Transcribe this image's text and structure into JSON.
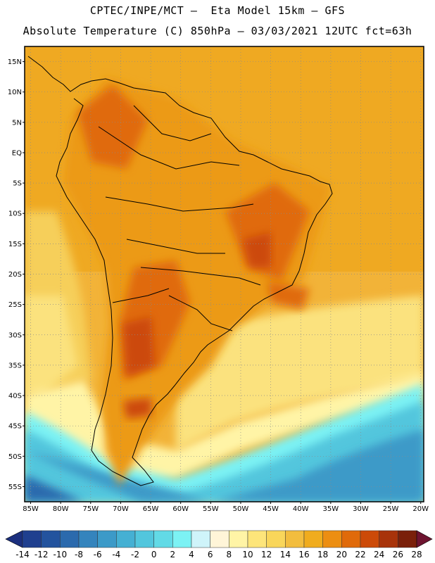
{
  "header": {
    "line1": "CPTEC/INPE/MCT –  Eta Model 15km – GFS",
    "line2": "Absolute Temperature (C) 850hPa – 03/03/2021 12UTC fct=63h"
  },
  "map": {
    "lat_labels": [
      "15N",
      "10N",
      "5N",
      "EQ",
      "5S",
      "10S",
      "15S",
      "20S",
      "25S",
      "30S",
      "35S",
      "40S",
      "45S",
      "50S",
      "55S"
    ],
    "lon_labels": [
      "85W",
      "80W",
      "75W",
      "70W",
      "65W",
      "60W",
      "55W",
      "50W",
      "45W",
      "40W",
      "35W",
      "30W",
      "25W",
      "20W"
    ]
  },
  "colorbar": {
    "labels": [
      "-14",
      "-12",
      "-10",
      "-8",
      "-6",
      "-4",
      "-2",
      "0",
      "2",
      "4",
      "6",
      "8",
      "10",
      "12",
      "14",
      "16",
      "18",
      "20",
      "22",
      "24",
      "26",
      "28"
    ],
    "colors": [
      "#1f3f8f",
      "#23539e",
      "#2b6aad",
      "#3484bd",
      "#3c9ac8",
      "#45b0d3",
      "#52c6dd",
      "#62dae6",
      "#7cf2f4",
      "#cff4fa",
      "#fff5d8",
      "#fff4a6",
      "#fde57a",
      "#f9d65a",
      "#f2bd3e",
      "#f0ac1e",
      "#ec8e12",
      "#e06a0a",
      "#cc4a08",
      "#a8330a",
      "#7a200a"
    ],
    "under_color": "#1b2f7e",
    "over_color": "#6e1430"
  }
}
